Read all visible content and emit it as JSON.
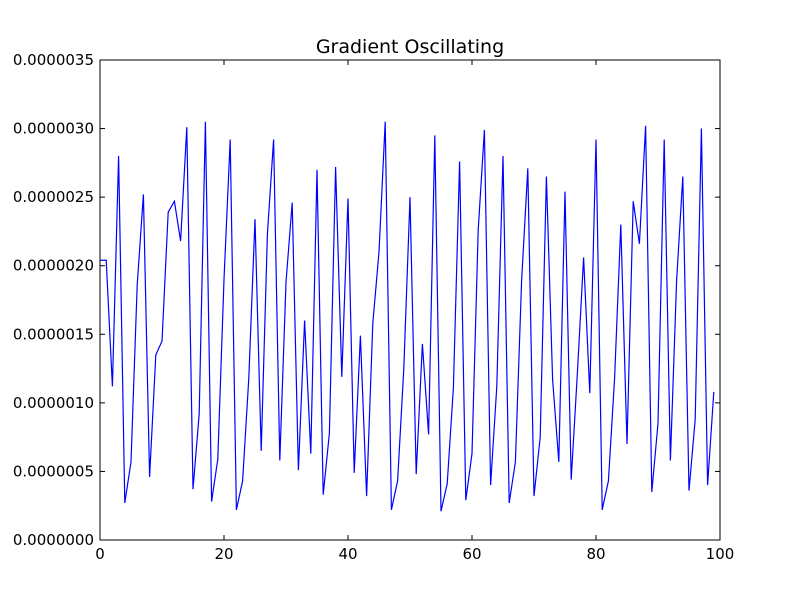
{
  "chart_data": {
    "type": "line",
    "title": "Gradient Oscillating",
    "xlabel": "",
    "ylabel": "",
    "xlim": [
      0,
      100
    ],
    "ylim": [
      0,
      3.5e-06
    ],
    "x_ticks": [
      0,
      20,
      40,
      60,
      80,
      100
    ],
    "x_tick_labels": [
      "0",
      "20",
      "40",
      "60",
      "80",
      "100"
    ],
    "y_ticks": [
      0,
      5e-07,
      1e-06,
      1.5e-06,
      2e-06,
      2.5e-06,
      3e-06,
      3.5e-06
    ],
    "y_tick_labels": [
      "0.0000000",
      "0.0000005",
      "0.0000010",
      "0.0000015",
      "0.0000020",
      "0.0000025",
      "0.0000030",
      "0.0000035"
    ],
    "grid": false,
    "legend": "none",
    "series_color": "#0000ff",
    "series": [
      {
        "values": [
          2.04e-06,
          2.04e-06,
          1.12e-06,
          2.8e-06,
          2.7e-07,
          5.7e-07,
          1.86e-06,
          2.52e-06,
          4.6e-07,
          1.35e-06,
          1.45e-06,
          2.39e-06,
          2.47e-06,
          2.18e-06,
          3.01e-06,
          3.7e-07,
          9.2e-07,
          3.05e-06,
          2.8e-07,
          5.9e-07,
          1.9e-06,
          2.92e-06,
          2.2e-07,
          4.3e-07,
          1.18e-06,
          2.34e-06,
          6.5e-07,
          2.23e-06,
          2.92e-06,
          5.8e-07,
          1.88e-06,
          2.46e-06,
          5.1e-07,
          1.6e-06,
          6.3e-07,
          2.7e-06,
          3.3e-07,
          7.8e-07,
          2.72e-06,
          1.19e-06,
          2.49e-06,
          4.9e-07,
          1.49e-06,
          3.2e-07,
          1.58e-06,
          2.1e-06,
          3.05e-06,
          2.2e-07,
          4.3e-07,
          1.25e-06,
          2.5e-06,
          4.8e-07,
          1.43e-06,
          7.7e-07,
          2.95e-06,
          2.1e-07,
          4.1e-07,
          1.11e-06,
          2.76e-06,
          2.9e-07,
          6.3e-07,
          2.26e-06,
          2.99e-06,
          4e-07,
          1.12e-06,
          2.8e-06,
          2.7e-07,
          5.7e-07,
          1.89e-06,
          2.71e-06,
          3.2e-07,
          7.5e-07,
          2.65e-06,
          1.17e-06,
          5.7e-07,
          2.54e-06,
          4.4e-07,
          1.22e-06,
          2.06e-06,
          1.07e-06,
          2.92e-06,
          2.2e-07,
          4.3e-07,
          1.18e-06,
          2.3e-06,
          7e-07,
          2.47e-06,
          2.16e-06,
          3.02e-06,
          3.5e-07,
          8.5e-07,
          2.92e-06,
          5.8e-07,
          1.89e-06,
          2.65e-06,
          3.6e-07,
          8.8e-07,
          3e-06,
          4e-07,
          1.08e-06
        ]
      }
    ]
  }
}
